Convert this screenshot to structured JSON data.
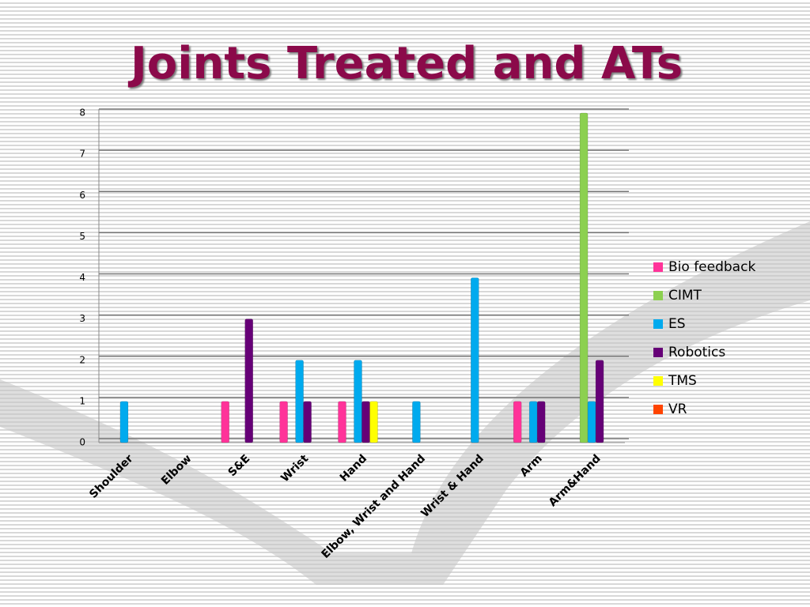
{
  "chart_data": {
    "type": "bar",
    "title": "Joints Treated and ATs",
    "categories": [
      "Shoulder",
      "Elbow",
      "S&E",
      "Wrist",
      "Hand",
      "Elbow, Wrist and Hand",
      "Wrist & Hand",
      "Arm",
      "Arm&Hand"
    ],
    "series": [
      {
        "name": "Bio feedback",
        "color": "#ff3399",
        "values": [
          0,
          0,
          1,
          1,
          1,
          0,
          0,
          1,
          0
        ]
      },
      {
        "name": "CIMT",
        "color": "#8cd050",
        "values": [
          0,
          0,
          0,
          0,
          0,
          0,
          0,
          0,
          8
        ]
      },
      {
        "name": "ES",
        "color": "#00aaee",
        "values": [
          1,
          0,
          0,
          2,
          2,
          1,
          4,
          1,
          1
        ]
      },
      {
        "name": "Robotics",
        "color": "#660077",
        "values": [
          0,
          0,
          3,
          1,
          1,
          0,
          0,
          1,
          2
        ]
      },
      {
        "name": "TMS",
        "color": "#ffff00",
        "values": [
          0,
          0,
          0,
          0,
          1,
          0,
          0,
          0,
          0
        ]
      },
      {
        "name": "VR",
        "color": "#ff4400",
        "values": [
          0,
          0,
          0,
          0,
          0,
          0,
          0,
          0,
          0
        ]
      }
    ],
    "ylim": [
      0,
      8
    ],
    "yticks": [
      0,
      1,
      2,
      3,
      4,
      5,
      6,
      7,
      8
    ],
    "grid": true,
    "legend": "right"
  }
}
